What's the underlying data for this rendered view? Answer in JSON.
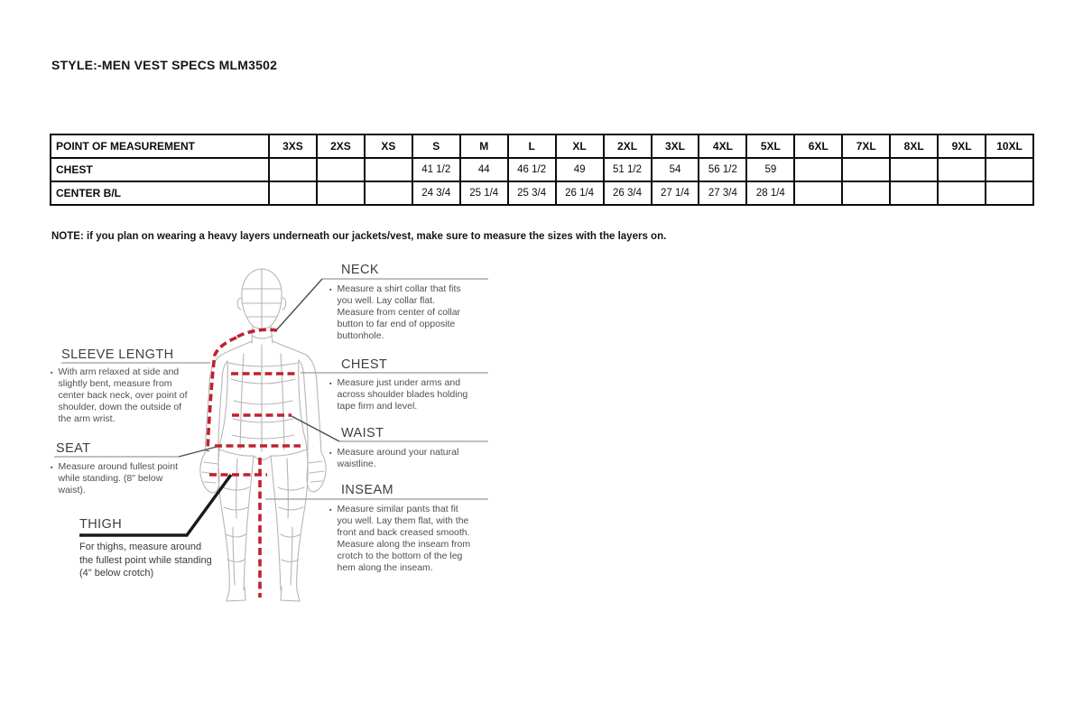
{
  "page": {
    "title": "STYLE:-MEN VEST SPECS MLM3502",
    "note": "NOTE: if you plan on wearing a heavy layers underneath our jackets/vest, make sure to measure the sizes with the layers on."
  },
  "size_table": {
    "header": [
      "POINT OF MEASUREMENT",
      "3XS",
      "2XS",
      "XS",
      "S",
      "M",
      "L",
      "XL",
      "2XL",
      "3XL",
      "4XL",
      "5XL",
      "6XL",
      "7XL",
      "8XL",
      "9XL",
      "10XL"
    ],
    "rows": [
      {
        "label": "CHEST",
        "values": [
          "",
          "",
          "",
          "41 1/2",
          "44",
          "46 1/2",
          "49",
          "51 1/2",
          "54",
          "56 1/2",
          "59",
          "",
          "",
          "",
          "",
          ""
        ]
      },
      {
        "label": "CENTER B/L",
        "values": [
          "",
          "",
          "",
          "24 3/4",
          "25 1/4",
          "25 3/4",
          "26 1/4",
          "26 3/4",
          "27 1/4",
          "27 3/4",
          "28 1/4",
          "",
          "",
          "",
          "",
          ""
        ]
      }
    ]
  },
  "diagram": {
    "neck": {
      "title": "NECK",
      "desc": "Measure a shirt collar that fits you well. Lay collar flat. Measure from center of collar button to far end of opposite buttonhole."
    },
    "chest": {
      "title": "CHEST",
      "desc": "Measure just under arms and across shoulder blades holding tape firm and level."
    },
    "waist": {
      "title": "WAIST",
      "desc": "Measure around your natural waistline."
    },
    "inseam": {
      "title": "INSEAM",
      "desc": "Measure similar pants that fit you well. Lay them flat, with the front and back creased smooth. Measure along the inseam from crotch to the bottom of the leg hem along the inseam."
    },
    "sleeve_length": {
      "title": "SLEEVE LENGTH",
      "desc": "With arm relaxed at side and slightly bent, measure from center back neck, over point of shoulder, down the outside of the arm wrist."
    },
    "seat": {
      "title": "SEAT",
      "desc": "Measure around fullest point while standing. (8\" below waist)."
    },
    "thigh": {
      "title": "THIGH",
      "desc": "For thighs, measure around the fullest point while standing (4\" below crotch)"
    }
  },
  "colors": {
    "measurement_line": "#c1202f",
    "wireframe": "#b6b6b6",
    "leader_line": "#4d4d4d",
    "rule_line": "#9a9a9a",
    "thigh_leader": "#1a1a1a"
  }
}
